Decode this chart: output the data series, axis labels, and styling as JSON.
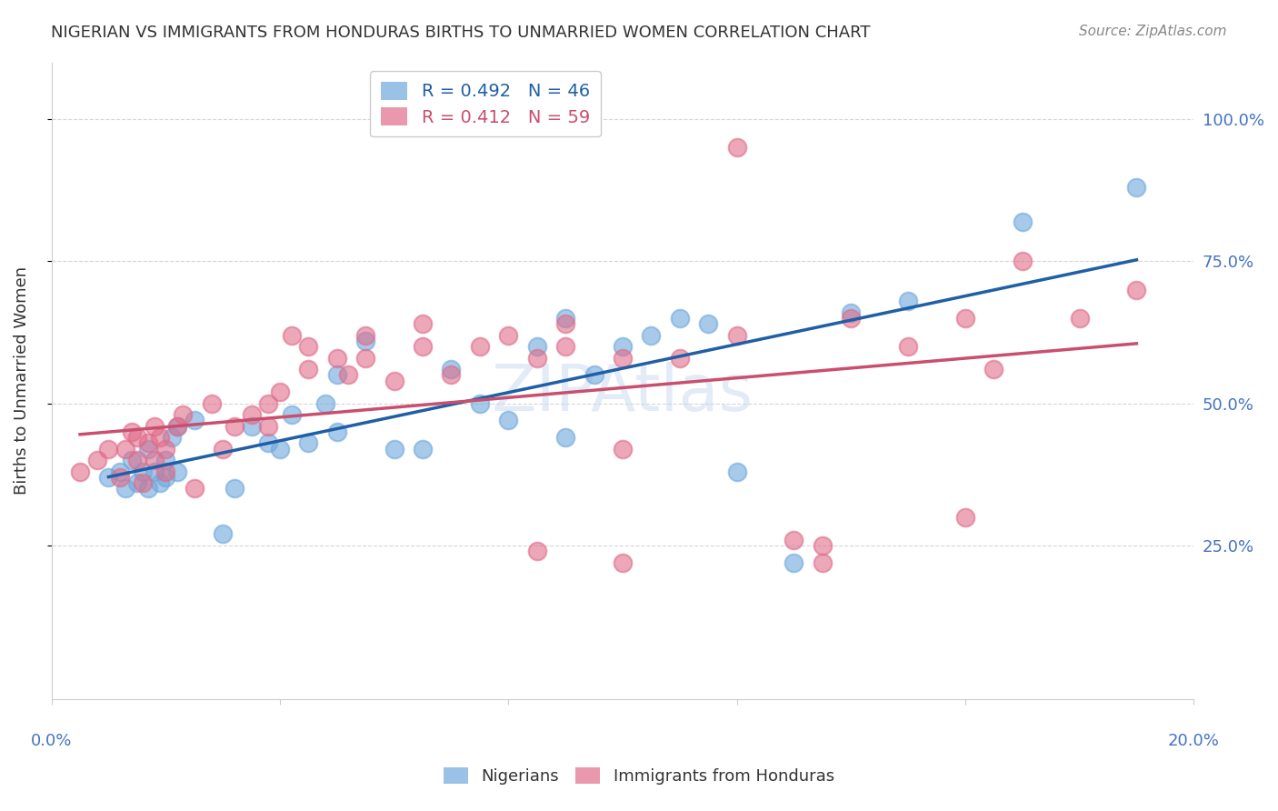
{
  "title": "NIGERIAN VS IMMIGRANTS FROM HONDURAS BIRTHS TO UNMARRIED WOMEN CORRELATION CHART",
  "source": "Source: ZipAtlas.com",
  "ylabel": "Births to Unmarried Women",
  "ytick_labels": [
    "100.0%",
    "75.0%",
    "50.0%",
    "25.0%"
  ],
  "ytick_values": [
    1.0,
    0.75,
    0.5,
    0.25
  ],
  "xlim": [
    0.0,
    0.2
  ],
  "ylim": [
    -0.02,
    1.1
  ],
  "blue_R": 0.492,
  "blue_N": 46,
  "pink_R": 0.412,
  "pink_N": 59,
  "blue_color": "#6fa8dc",
  "pink_color": "#e06c8a",
  "line_blue": "#1f5fa6",
  "line_pink": "#c94f6e",
  "legend_label_blue": "Nigerians",
  "legend_label_pink": "Immigrants from Honduras",
  "watermark": "ZIPAtlas",
  "blue_x": [
    0.01,
    0.012,
    0.013,
    0.014,
    0.015,
    0.016,
    0.017,
    0.017,
    0.018,
    0.019,
    0.02,
    0.02,
    0.021,
    0.022,
    0.022,
    0.025,
    0.03,
    0.032,
    0.035,
    0.038,
    0.04,
    0.042,
    0.045,
    0.048,
    0.05,
    0.05,
    0.055,
    0.06,
    0.065,
    0.07,
    0.075,
    0.08,
    0.085,
    0.09,
    0.09,
    0.095,
    0.1,
    0.105,
    0.11,
    0.115,
    0.12,
    0.13,
    0.14,
    0.15,
    0.17,
    0.19
  ],
  "blue_y": [
    0.37,
    0.38,
    0.35,
    0.4,
    0.36,
    0.38,
    0.42,
    0.35,
    0.38,
    0.36,
    0.4,
    0.37,
    0.44,
    0.46,
    0.38,
    0.47,
    0.27,
    0.35,
    0.46,
    0.43,
    0.42,
    0.48,
    0.43,
    0.5,
    0.45,
    0.55,
    0.61,
    0.42,
    0.42,
    0.56,
    0.5,
    0.47,
    0.6,
    0.44,
    0.65,
    0.55,
    0.6,
    0.62,
    0.65,
    0.64,
    0.38,
    0.22,
    0.66,
    0.68,
    0.82,
    0.88
  ],
  "pink_x": [
    0.005,
    0.008,
    0.01,
    0.012,
    0.013,
    0.014,
    0.015,
    0.015,
    0.016,
    0.017,
    0.018,
    0.018,
    0.019,
    0.02,
    0.02,
    0.022,
    0.023,
    0.025,
    0.028,
    0.03,
    0.032,
    0.035,
    0.038,
    0.038,
    0.04,
    0.042,
    0.045,
    0.045,
    0.05,
    0.052,
    0.055,
    0.055,
    0.06,
    0.065,
    0.065,
    0.07,
    0.075,
    0.08,
    0.085,
    0.09,
    0.09,
    0.1,
    0.1,
    0.11,
    0.12,
    0.13,
    0.135,
    0.14,
    0.15,
    0.16,
    0.165,
    0.17,
    0.18,
    0.19,
    0.135,
    0.085,
    0.1,
    0.12,
    0.16
  ],
  "pink_y": [
    0.38,
    0.4,
    0.42,
    0.37,
    0.42,
    0.45,
    0.4,
    0.44,
    0.36,
    0.43,
    0.46,
    0.4,
    0.44,
    0.42,
    0.38,
    0.46,
    0.48,
    0.35,
    0.5,
    0.42,
    0.46,
    0.48,
    0.5,
    0.46,
    0.52,
    0.62,
    0.6,
    0.56,
    0.58,
    0.55,
    0.62,
    0.58,
    0.54,
    0.6,
    0.64,
    0.55,
    0.6,
    0.62,
    0.58,
    0.6,
    0.64,
    0.58,
    0.42,
    0.58,
    0.62,
    0.26,
    0.25,
    0.65,
    0.6,
    0.65,
    0.56,
    0.75,
    0.65,
    0.7,
    0.22,
    0.24,
    0.22,
    0.95,
    0.3
  ],
  "grid_color": "#cccccc",
  "background_color": "#ffffff",
  "title_color": "#333333",
  "tick_label_color": "#4472c4"
}
